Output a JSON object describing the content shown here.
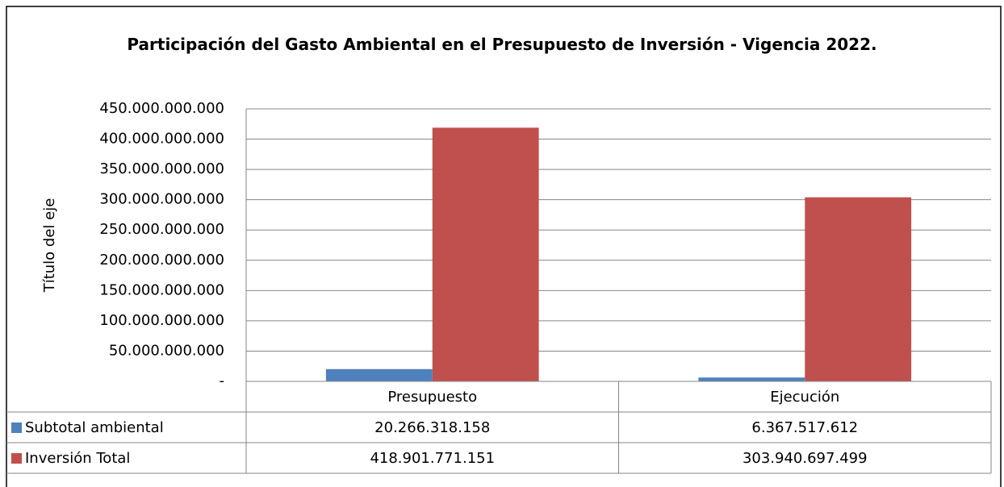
{
  "chart_data": {
    "type": "bar",
    "title": "Participación del Gasto Ambiental en el Presupuesto de Inversión - Vigencia 2022.",
    "y_label": "Título del eje",
    "categories": [
      "Presupuesto",
      "Ejecución"
    ],
    "series": [
      {
        "name": "Subtotal ambiental",
        "color": "#4f81bd",
        "values": [
          20266318158,
          6367517612
        ],
        "value_labels": [
          "20.266.318.158",
          "6.367.517.612"
        ]
      },
      {
        "name": "Inversión Total",
        "color": "#c0504d",
        "values": [
          418901771151,
          303940697499
        ],
        "value_labels": [
          "418.901.771.151",
          "303.940.697.499"
        ]
      }
    ],
    "ylim": [
      0,
      450000000000
    ],
    "yticks": [
      {
        "value": 0,
        "label": "-"
      },
      {
        "value": 50000000000,
        "label": "50.000.000.000"
      },
      {
        "value": 100000000000,
        "label": "100.000.000.000"
      },
      {
        "value": 150000000000,
        "label": "150.000.000.000"
      },
      {
        "value": 200000000000,
        "label": "200.000.000.000"
      },
      {
        "value": 250000000000,
        "label": "250.000.000.000"
      },
      {
        "value": 300000000000,
        "label": "300.000.000.000"
      },
      {
        "value": 350000000000,
        "label": "350.000.000.000"
      },
      {
        "value": 400000000000,
        "label": "400.000.000.000"
      },
      {
        "value": 450000000000,
        "label": "450.000.000.000"
      }
    ],
    "grid": true,
    "data_table": true
  }
}
